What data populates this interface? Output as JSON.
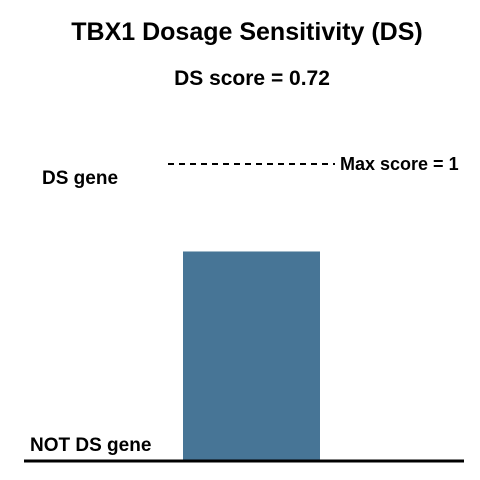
{
  "chart_data": {
    "type": "bar",
    "title": "TBX1 Dosage Sensitivity (DS)",
    "subtitle": "DS score = 0.72",
    "values": [
      0.72
    ],
    "ylim": [
      0,
      1
    ],
    "max_line_value": 1,
    "max_line_label": "Max score = 1",
    "top_label": "DS gene",
    "bottom_label": "NOT DS gene",
    "grid": false,
    "legend": "none",
    "colors": {
      "bar": "#477596",
      "axis": "#000000",
      "text": "#000000"
    }
  }
}
